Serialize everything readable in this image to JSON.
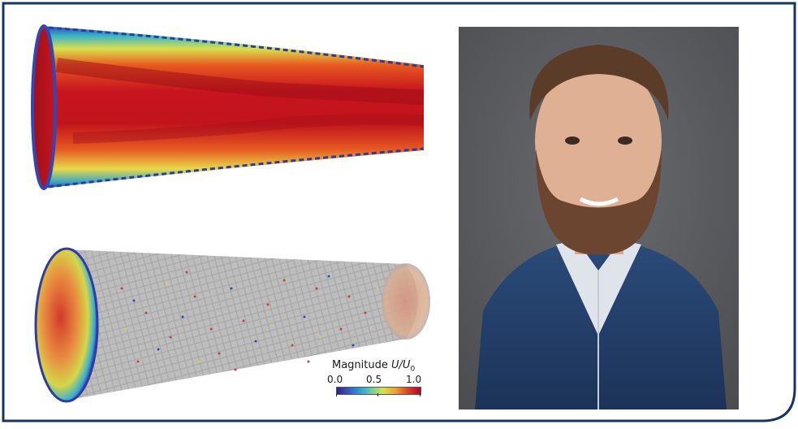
{
  "figure": {
    "colorbar": {
      "title_prefix": "Magnitude ",
      "title_var": "U/U",
      "title_sub": "0",
      "tick_min": "0.0",
      "tick_mid": "0.5",
      "tick_max": "1.0"
    },
    "colors": {
      "frame": "#16355f",
      "hot": "#c8141e",
      "cold": "#3047b8",
      "mid": "#e8d84a"
    }
  }
}
